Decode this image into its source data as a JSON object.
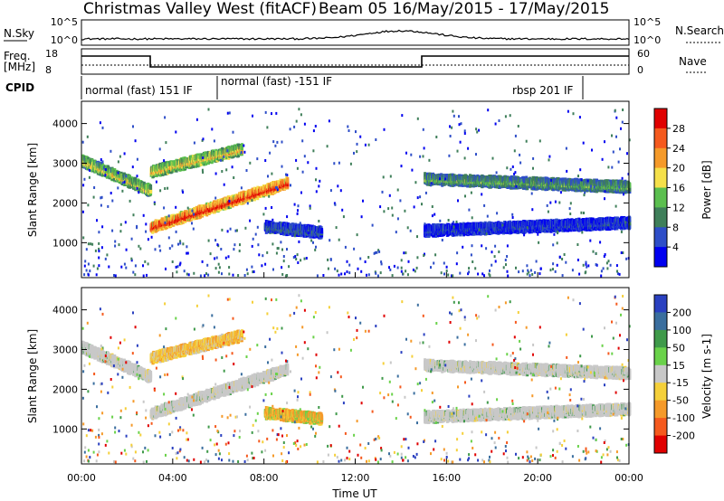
{
  "header": {
    "station": "Christmas Valley West (fitACF)",
    "beam_date": "Beam 05  16/May/2015 - 17/May/2015"
  },
  "top_panels": {
    "nsky": {
      "left_label": "N.Sky",
      "right_label": "N.Search",
      "left_ticks": [
        "10^5",
        "10^0"
      ],
      "right_ticks": [
        "10^5",
        "10^0"
      ]
    },
    "freq": {
      "left_label_line1": "Freq.",
      "left_label_line2": "[MHz]",
      "right_label": "Nave",
      "left_ticks": [
        "18",
        "8"
      ],
      "right_ticks": [
        "60",
        "0"
      ]
    },
    "cpid": {
      "label": "CPID",
      "segments": [
        {
          "text": "normal (fast) 151 IF",
          "start_h": 0,
          "end_h": 6
        },
        {
          "text": "normal (fast) -151 IF",
          "start_h": 6,
          "end_h": 22
        },
        {
          "text": "rbsp 201 IF",
          "start_h": 22,
          "end_h": 24
        }
      ]
    }
  },
  "chart_data": [
    {
      "type": "heatmap",
      "title": "Power",
      "ylabel": "Slant Range [km]",
      "x_range_h": [
        0,
        24
      ],
      "ylim": [
        120,
        4560
      ],
      "y_ticks": [
        "1000",
        "2000",
        "3000",
        "4000"
      ],
      "colorbar": {
        "label": "Power [dB]",
        "ticks": [
          "4",
          "8",
          "12",
          "16",
          "20",
          "24",
          "28"
        ],
        "colors": [
          "#0000f0",
          "#2e4ec8",
          "#3f7f5a",
          "#5bbf4f",
          "#f5e04a",
          "#f59a2a",
          "#f55a1e",
          "#e00000"
        ]
      },
      "features": [
        {
          "name": "echo-band-a",
          "h_start": 0,
          "h_end": 3,
          "km_start": 3050,
          "km_end": 2300,
          "level": 0.5
        },
        {
          "name": "echo-band-b",
          "h_start": 3,
          "h_end": 7,
          "km_start": 2780,
          "km_end": 3350,
          "level": 0.55
        },
        {
          "name": "echo-band-c",
          "h_start": 3,
          "h_end": 9,
          "km_start": 1380,
          "km_end": 2500,
          "level": 0.85
        },
        {
          "name": "echo-band-d",
          "h_start": 15,
          "h_end": 24,
          "km_start": 2600,
          "km_end": 2400,
          "level": 0.35
        },
        {
          "name": "echo-band-e",
          "h_start": 15,
          "h_end": 24,
          "km_start": 1300,
          "km_end": 1500,
          "level": 0.15
        },
        {
          "name": "echo-band-f",
          "h_start": 8,
          "h_end": 10.5,
          "km_start": 1400,
          "km_end": 1250,
          "level": 0.2
        }
      ]
    },
    {
      "type": "heatmap",
      "title": "Velocity",
      "ylabel": "Slant Range [km]",
      "x_range_h": [
        0,
        24
      ],
      "ylim": [
        120,
        4560
      ],
      "y_ticks": [
        "1000",
        "2000",
        "3000",
        "4000"
      ],
      "xlabel": "Time UT",
      "x_ticks": [
        "00:00",
        "04:00",
        "08:00",
        "12:00",
        "16:00",
        "20:00",
        "00:00"
      ],
      "colorbar": {
        "label": "Velocity [m s-1]",
        "ticks": [
          "200",
          "100",
          "50",
          "15",
          "-15",
          "-50",
          "-100",
          "-200"
        ],
        "colors": [
          "#2a40c0",
          "#3a6e9e",
          "#3f9a4a",
          "#6ad24a",
          "#c8c8c8",
          "#f5d03a",
          "#f59a2a",
          "#f55a1e",
          "#e00000"
        ]
      }
    }
  ]
}
